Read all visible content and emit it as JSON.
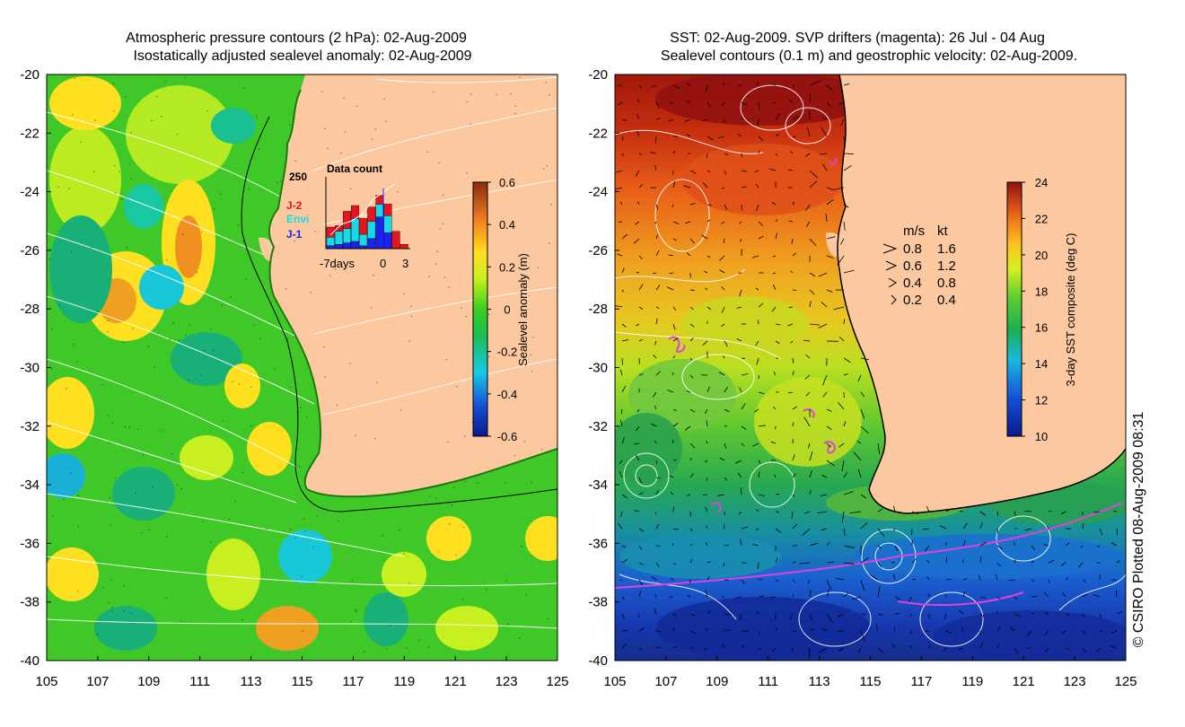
{
  "left_panel": {
    "title_line1": "Atmospheric pressure contours (2 hPa): 02-Aug-2009",
    "title_line2": "Isostatically adjusted sealevel anomaly: 02-Aug-2009",
    "colorbar_label": "Sealevel anomaly (m)",
    "colorbar_ticks": [
      "0.6",
      "0.4",
      "0.2",
      "0",
      "-0.2",
      "-0.4",
      "-0.6"
    ],
    "inset": {
      "title": "Data count",
      "ymax_label": "250",
      "series_labels": [
        "J-2",
        "Envi",
        "J-1"
      ],
      "series_colors": [
        "#e8141c",
        "#19d8e8",
        "#1a22f0"
      ],
      "x_labels": [
        "-7days",
        "0",
        "3"
      ],
      "bars": [
        {
          "red": 35,
          "cyan": 30,
          "blue": 10
        },
        {
          "red": 20,
          "cyan": 45,
          "blue": 15
        },
        {
          "red": 60,
          "cyan": 50,
          "blue": 20
        },
        {
          "red": 45,
          "cyan": 80,
          "blue": 25
        },
        {
          "red": 55,
          "cyan": 40,
          "blue": 10
        },
        {
          "red": 50,
          "cyan": 60,
          "blue": 35
        },
        {
          "red": 30,
          "cyan": 45,
          "blue": 110
        },
        {
          "red": 40,
          "cyan": 60,
          "blue": 55
        },
        {
          "red": 60,
          "cyan": 0,
          "blue": 0
        },
        {
          "red": 15,
          "cyan": 0,
          "blue": 0
        }
      ]
    }
  },
  "right_panel": {
    "title_line1": "SST: 02-Aug-2009. SVP drifters (magenta): 26 Jul - 04 Aug",
    "title_line2": "Sealevel contours (0.1 m) and geostrophic velocity: 02-Aug-2009.",
    "colorbar_label": "3-day SST composite (deg C)",
    "colorbar_ticks": [
      "24",
      "22",
      "20",
      "18",
      "16",
      "14",
      "12",
      "10"
    ],
    "legend_header": [
      "m/s",
      "kt"
    ],
    "legend_rows": [
      {
        "ms": "0.8",
        "kt": "1.6"
      },
      {
        "ms": "0.6",
        "kt": "1.2"
      },
      {
        "ms": "0.4",
        "kt": "0.8"
      },
      {
        "ms": "0.2",
        "kt": "0.4"
      }
    ]
  },
  "credit": "© CSIRO Plotted 08-Aug-2009 08:31",
  "colors": {
    "land": "#fcc8a0",
    "drifter": "#e040e0",
    "contour": "#ffffff"
  },
  "chart_data": [
    {
      "type": "heatmap",
      "title": "Atmospheric pressure contours (2 hPa): 02-Aug-2009 / Isostatically adjusted sealevel anomaly: 02-Aug-2009",
      "x_ticks": [
        "105",
        "107",
        "109",
        "111",
        "113",
        "115",
        "117",
        "119",
        "121",
        "123",
        "125"
      ],
      "y_ticks": [
        "-20",
        "-22",
        "-24",
        "-26",
        "-28",
        "-30",
        "-32",
        "-34",
        "-36",
        "-38",
        "-40"
      ],
      "xlim": [
        105,
        125
      ],
      "ylim": [
        -40,
        -20
      ],
      "colorbar": {
        "label": "Sealevel anomaly (m)",
        "range": [
          -0.6,
          0.6
        ]
      }
    },
    {
      "type": "heatmap",
      "title": "SST: 02-Aug-2009. SVP drifters (magenta): 26 Jul - 04 Aug / Sealevel contours (0.1 m) and geostrophic velocity: 02-Aug-2009.",
      "x_ticks": [
        "105",
        "107",
        "109",
        "111",
        "113",
        "115",
        "117",
        "119",
        "121",
        "123",
        "125"
      ],
      "y_ticks": [
        "-20",
        "-22",
        "-24",
        "-26",
        "-28",
        "-30",
        "-32",
        "-34",
        "-36",
        "-38",
        "-40"
      ],
      "xlim": [
        105,
        125
      ],
      "ylim": [
        -40,
        -20
      ],
      "colorbar": {
        "label": "3-day SST composite (deg C)",
        "range": [
          10,
          24
        ]
      }
    }
  ]
}
